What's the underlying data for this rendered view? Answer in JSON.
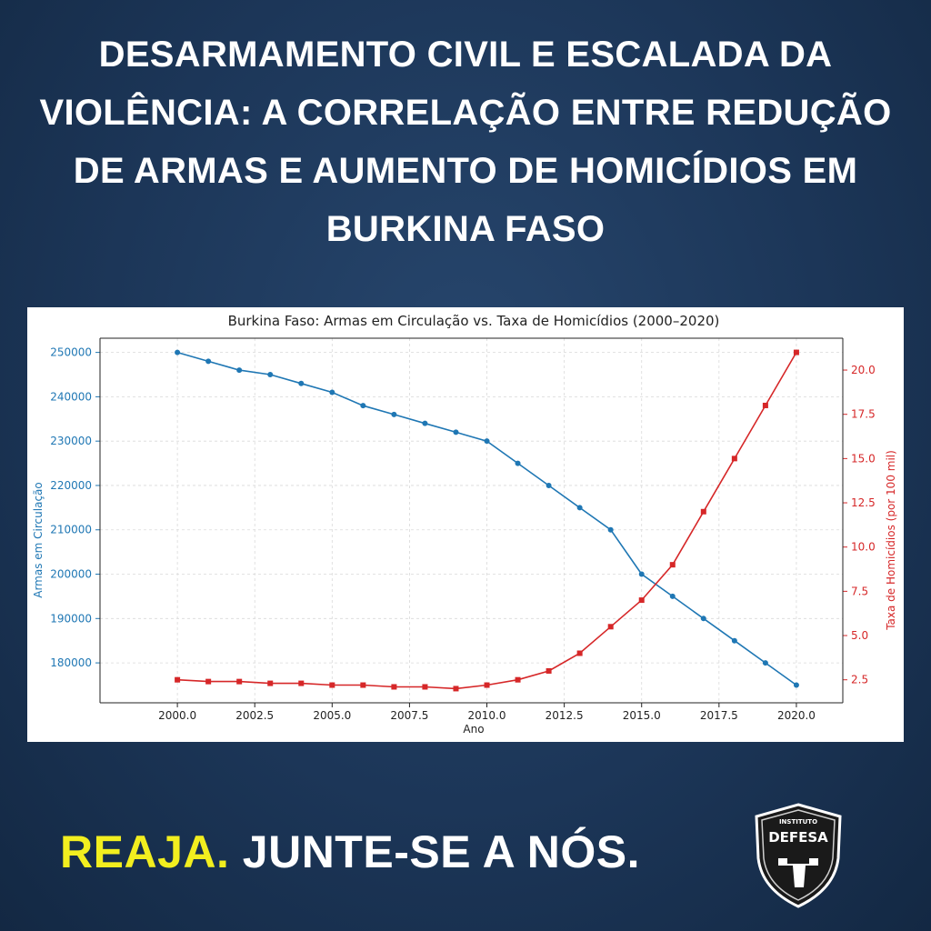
{
  "headline": "DESARMAMENTO CIVIL E ESCALADA DA VIOLÊNCIA: A CORRELAÇÃO ENTRE REDUÇÃO DE ARMAS E AUMENTO DE HOMICÍDIOS EM BURKINA FASO",
  "footer": {
    "cta_highlight": "REAJA.",
    "cta_rest": "JUNTE-SE A NÓS."
  },
  "logo": {
    "top_text": "INSTITUTO",
    "name": "DEFESA",
    "shape": "shield-with-pistol"
  },
  "colors": {
    "background": "#1c3658",
    "series_arms": "#1f77b4",
    "series_homicide": "#d62728",
    "cta_highlight": "#f2ee1f"
  },
  "chart_data": {
    "type": "line",
    "title": "Burkina Faso: Armas em Circulação vs. Taxa de Homicídios (2000–2020)",
    "xlabel": "Ano",
    "x": [
      2000,
      2001,
      2002,
      2003,
      2004,
      2005,
      2006,
      2007,
      2008,
      2009,
      2010,
      2011,
      2012,
      2013,
      2014,
      2015,
      2016,
      2017,
      2018,
      2019,
      2020
    ],
    "x_ticks": [
      "2000.0",
      "2002.5",
      "2005.0",
      "2007.5",
      "2010.0",
      "2012.5",
      "2015.0",
      "2017.5",
      "2020.0"
    ],
    "xlim": [
      1997.5,
      2021.5
    ],
    "grid": true,
    "series": [
      {
        "name": "Armas em Circulação",
        "axis": "left",
        "ylabel": "Armas em Circulação",
        "marker": "circle",
        "color": "#1f77b4",
        "values": [
          250000,
          248000,
          246000,
          245000,
          243000,
          241000,
          238000,
          236000,
          234000,
          232000,
          230000,
          225000,
          220000,
          215000,
          210000,
          200000,
          195000,
          190000,
          185000,
          180000,
          175000
        ],
        "ylim": [
          171000,
          253200
        ],
        "y_ticks": [
          "180000",
          "190000",
          "200000",
          "210000",
          "220000",
          "230000",
          "240000",
          "250000"
        ]
      },
      {
        "name": "Taxa de Homicídios (por 100 mil)",
        "axis": "right",
        "ylabel": "Taxa de Homicídios (por 100 mil)",
        "marker": "square",
        "color": "#d62728",
        "values": [
          2.5,
          2.4,
          2.4,
          2.3,
          2.3,
          2.2,
          2.2,
          2.1,
          2.1,
          2.0,
          2.2,
          2.5,
          3.0,
          4.0,
          5.5,
          7.0,
          9.0,
          12.0,
          15.0,
          18.0,
          21.0
        ],
        "ylim": [
          1.2,
          21.8
        ],
        "y_ticks": [
          "2.5",
          "5.0",
          "7.5",
          "10.0",
          "12.5",
          "15.0",
          "17.5",
          "20.0"
        ]
      }
    ]
  }
}
